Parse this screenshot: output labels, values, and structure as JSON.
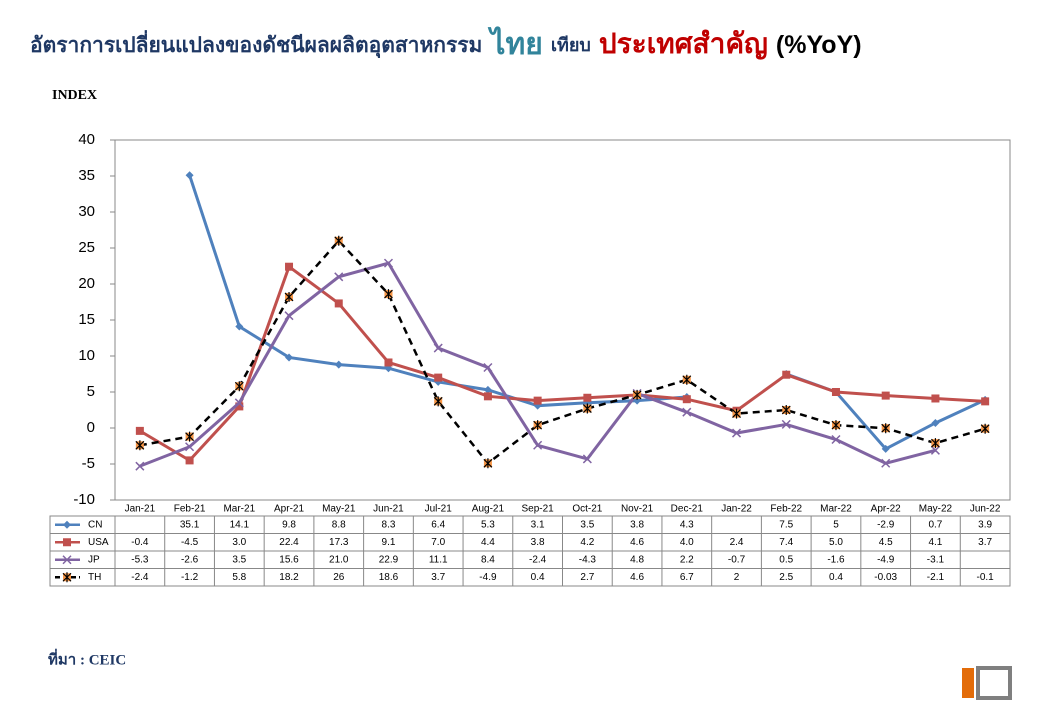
{
  "chart_data": {
    "type": "line",
    "title": [
      "อัตราการเปลี่ยนแปลงของดัชนีผลผลิตอุตสาหกรรม",
      "ไทย",
      "เทียบ",
      "ประเทศสำคัญ",
      "(%YoY)"
    ],
    "title_colors": [
      "#1f3864",
      "#31849b",
      "#1f3864",
      "#c00000",
      "#000000"
    ],
    "y_label": "INDEX",
    "source": "ที่มา : CEIC",
    "categories": [
      "Jan-21",
      "Feb-21",
      "Mar-21",
      "Apr-21",
      "May-21",
      "Jun-21",
      "Jul-21",
      "Aug-21",
      "Sep-21",
      "Oct-21",
      "Nov-21",
      "Dec-21",
      "Jan-22",
      "Feb-22",
      "Mar-22",
      "Apr-22",
      "May-22",
      "Jun-22"
    ],
    "ylim": [
      -10,
      40
    ],
    "yticks": [
      -10,
      -5,
      0,
      5,
      10,
      15,
      20,
      25,
      30,
      35,
      40
    ],
    "grid": false,
    "series": [
      {
        "name": "CN",
        "color": "#4f81bd",
        "marker": "diamond",
        "dash": false,
        "values": [
          null,
          35.1,
          14.1,
          9.8,
          8.8,
          8.3,
          6.4,
          5.3,
          3.1,
          3.5,
          3.8,
          4.3,
          null,
          7.5,
          5,
          -2.9,
          0.7,
          3.9
        ],
        "value_labels": [
          null,
          "35.1",
          "14.1",
          "9.8",
          "8.8",
          "8.3",
          "6.4",
          "5.3",
          "3.1",
          "3.5",
          "3.8",
          "4.3",
          null,
          "7.5",
          "5",
          "-2.9",
          "0.7",
          "3.9"
        ]
      },
      {
        "name": "USA",
        "color": "#c0504d",
        "marker": "square",
        "dash": false,
        "values": [
          -0.4,
          -4.5,
          3.0,
          22.4,
          17.3,
          9.1,
          7.0,
          4.4,
          3.8,
          4.2,
          4.6,
          4.0,
          2.4,
          7.4,
          5.0,
          4.5,
          4.1,
          3.7
        ],
        "value_labels": [
          "-0.4",
          "-4.5",
          "3.0",
          "22.4",
          "17.3",
          "9.1",
          "7.0",
          "4.4",
          "3.8",
          "4.2",
          "4.6",
          "4.0",
          "2.4",
          "7.4",
          "5.0",
          "4.5",
          "4.1",
          "3.7"
        ]
      },
      {
        "name": "JP",
        "color": "#8064a2",
        "marker": "x",
        "dash": false,
        "values": [
          -5.3,
          -2.6,
          3.5,
          15.6,
          21.0,
          22.9,
          11.1,
          8.4,
          -2.4,
          -4.3,
          4.8,
          2.2,
          -0.7,
          0.5,
          -1.6,
          -4.9,
          -3.1,
          null
        ],
        "value_labels": [
          "-5.3",
          "-2.6",
          "3.5",
          "15.6",
          "21.0",
          "22.9",
          "11.1",
          "8.4",
          "-2.4",
          "-4.3",
          "4.8",
          "2.2",
          "-0.7",
          "0.5",
          "-1.6",
          "-4.9",
          "-3.1",
          null
        ]
      },
      {
        "name": "TH",
        "color": "#000000",
        "marker": "star",
        "dash": true,
        "values": [
          -2.4,
          -1.2,
          5.8,
          18.2,
          26,
          18.6,
          3.7,
          -4.9,
          0.4,
          2.7,
          4.6,
          6.7,
          2,
          2.5,
          0.4,
          -0.03,
          -2.1,
          -0.1
        ],
        "value_labels": [
          "-2.4",
          "-1.2",
          "5.8",
          "18.2",
          "26",
          "18.6",
          "3.7",
          "-4.9",
          "0.4",
          "2.7",
          "4.6",
          "6.7",
          "2",
          "2.5",
          "0.4",
          "-0.03",
          "-2.1",
          "-0.1"
        ]
      }
    ]
  }
}
